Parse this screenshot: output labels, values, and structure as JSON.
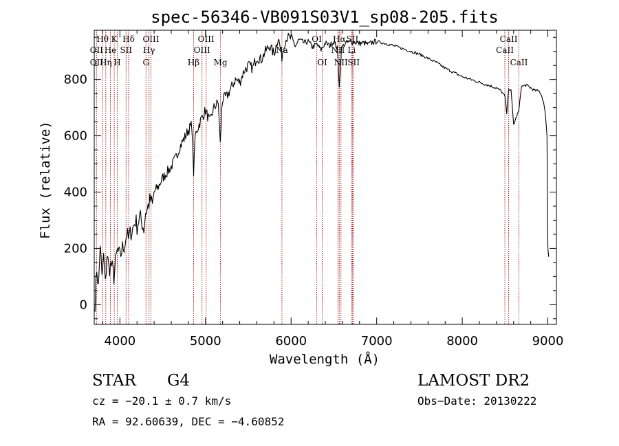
{
  "chart_data": {
    "type": "line",
    "title": "spec-56346-VB091S03V1_sp08-205.fits",
    "xlabel": "Wavelength (Å)",
    "ylabel": "Flux (relative)",
    "xlim": [
      3700,
      9100
    ],
    "ylim": [
      -70,
      975
    ],
    "xticks": [
      {
        "value": 4000,
        "label": "4000"
      },
      {
        "value": 5000,
        "label": "5000"
      },
      {
        "value": 6000,
        "label": "6000"
      },
      {
        "value": 7000,
        "label": "7000"
      },
      {
        "value": 8000,
        "label": "8000"
      },
      {
        "value": 9000,
        "label": "9000"
      }
    ],
    "yticks": [
      {
        "value": 0,
        "label": "0"
      },
      {
        "value": 200,
        "label": "200"
      },
      {
        "value": 400,
        "label": "400"
      },
      {
        "value": 600,
        "label": "600"
      },
      {
        "value": 800,
        "label": "800"
      }
    ],
    "spectrum": {
      "x": [
        3710,
        3730,
        3750,
        3770,
        3790,
        3810,
        3830,
        3850,
        3870,
        3900,
        3930,
        3950,
        3970,
        4000,
        4030,
        4050,
        4080,
        4100,
        4130,
        4150,
        4180,
        4200,
        4230,
        4250,
        4280,
        4300,
        4320,
        4340,
        4360,
        4380,
        4400,
        4450,
        4500,
        4550,
        4600,
        4650,
        4700,
        4750,
        4800,
        4840,
        4861,
        4880,
        4900,
        4950,
        5000,
        5050,
        5100,
        5150,
        5172,
        5190,
        5200,
        5250,
        5300,
        5350,
        5400,
        5450,
        5500,
        5550,
        5600,
        5650,
        5700,
        5750,
        5800,
        5850,
        5893,
        5920,
        5950,
        6000,
        6050,
        6100,
        6150,
        6200,
        6250,
        6300,
        6350,
        6400,
        6450,
        6500,
        6540,
        6563,
        6590,
        6620,
        6650,
        6700,
        6750,
        6800,
        6850,
        6900,
        6950,
        7000,
        7100,
        7200,
        7300,
        7400,
        7500,
        7600,
        7700,
        7800,
        7900,
        8000,
        8100,
        8200,
        8300,
        8400,
        8450,
        8498,
        8520,
        8542,
        8570,
        8600,
        8662,
        8690,
        8750,
        8800,
        8850,
        8900,
        8930,
        8950,
        8970,
        8990,
        9000,
        9010
      ],
      "y": [
        10,
        130,
        60,
        220,
        90,
        170,
        70,
        180,
        130,
        140,
        100,
        150,
        190,
        170,
        200,
        210,
        250,
        230,
        260,
        270,
        300,
        280,
        310,
        300,
        270,
        330,
        340,
        360,
        370,
        350,
        400,
        420,
        450,
        470,
        490,
        520,
        560,
        590,
        620,
        640,
        470,
        600,
        620,
        660,
        690,
        650,
        700,
        720,
        570,
        690,
        730,
        740,
        770,
        800,
        790,
        830,
        850,
        840,
        880,
        870,
        900,
        920,
        890,
        950,
        880,
        930,
        950,
        945,
        920,
        940,
        930,
        935,
        915,
        925,
        905,
        930,
        920,
        935,
        910,
        780,
        910,
        925,
        930,
        935,
        932,
        928,
        930,
        925,
        932,
        935,
        928,
        920,
        910,
        900,
        890,
        875,
        860,
        840,
        825,
        810,
        800,
        790,
        780,
        770,
        760,
        740,
        680,
        770,
        760,
        640,
        690,
        775,
        780,
        770,
        760,
        760,
        740,
        720,
        680,
        600,
        200,
        170
      ]
    },
    "lines": [
      {
        "name": "Hθ",
        "x": 3798,
        "row": 1
      },
      {
        "name": "OII",
        "x": 3727,
        "row": 2
      },
      {
        "name": "OII",
        "x": 3727,
        "row": 3
      },
      {
        "name": "Hη",
        "x": 3835,
        "row": 3
      },
      {
        "name": "K",
        "x": 3934,
        "row": 1
      },
      {
        "name": "He",
        "x": 3889,
        "row": 2
      },
      {
        "name": "H",
        "x": 3969,
        "row": 3
      },
      {
        "name": "Hδ",
        "x": 4102,
        "row": 1
      },
      {
        "name": "SII",
        "x": 4072,
        "row": 2
      },
      {
        "name": "OIII",
        "x": 4363,
        "row": 1
      },
      {
        "name": "Hγ",
        "x": 4340,
        "row": 2
      },
      {
        "name": "G",
        "x": 4305,
        "row": 3
      },
      {
        "name": "Hβ",
        "x": 4861,
        "row": 3
      },
      {
        "name": "OIII",
        "x": 4959,
        "row": 2
      },
      {
        "name": "OIII",
        "x": 5007,
        "row": 1
      },
      {
        "name": "Mg",
        "x": 5175,
        "row": 3
      },
      {
        "name": "Na",
        "x": 5893,
        "row": 2
      },
      {
        "name": "OI",
        "x": 6300,
        "row": 1
      },
      {
        "name": "OI",
        "x": 6364,
        "row": 3
      },
      {
        "name": "Hα",
        "x": 6563,
        "row": 1
      },
      {
        "name": "NII",
        "x": 6548,
        "row": 2
      },
      {
        "name": "NII",
        "x": 6583,
        "row": 3
      },
      {
        "name": "SII",
        "x": 6717,
        "row": 1
      },
      {
        "name": "Li",
        "x": 6708,
        "row": 2
      },
      {
        "name": "SII",
        "x": 6731,
        "row": 3
      },
      {
        "name": "CaII",
        "x": 8542,
        "row": 1
      },
      {
        "name": "CaII",
        "x": 8498,
        "row": 2
      },
      {
        "name": "CaII",
        "x": 8662,
        "row": 3
      }
    ]
  },
  "info": {
    "object_type": "STAR",
    "subclass": "G4",
    "survey": "LAMOST DR2",
    "cz": "cz = −20.1 ± 0.7 km/s",
    "obs_date": "Obs−Date: 20130222",
    "coords": "RA =  92.60639, DEC =  −4.60852"
  },
  "colors": {
    "line_marker": "#a32020",
    "spectrum": "#000000"
  }
}
